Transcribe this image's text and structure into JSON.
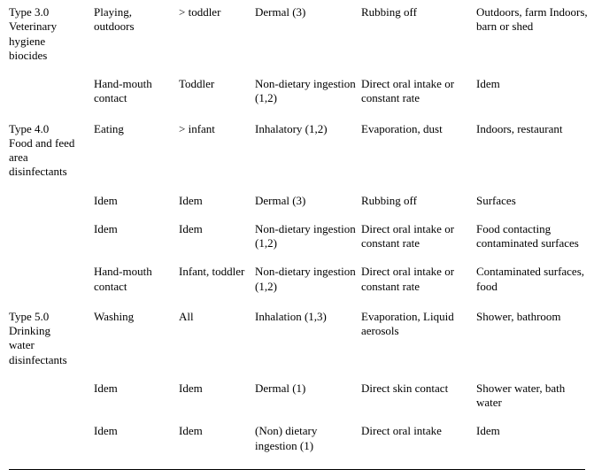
{
  "table": {
    "font_family": "Times New Roman",
    "font_size_pt": 10,
    "text_color": "#000000",
    "background_color": "#ffffff",
    "rule_color": "#000000",
    "columns": [
      "category",
      "activity",
      "age",
      "route",
      "mechanism",
      "location"
    ],
    "groups": [
      {
        "category_lines": [
          "Type 3.0",
          "Veterinary",
          "hygiene",
          "biocides"
        ],
        "rows": [
          {
            "activity": "Playing, outdoors",
            "age": "> toddler",
            "route": "Dermal (3)",
            "mechanism": "Rubbing off",
            "location": "Outdoors, farm Indoors, barn or shed"
          },
          {
            "activity": "Hand-mouth contact",
            "age": "Toddler",
            "route": "Non-dietary ingestion (1,2)",
            "mechanism": "Direct oral intake or constant rate",
            "location": "Idem"
          }
        ]
      },
      {
        "category_lines": [
          "Type 4.0",
          "Food and feed",
          "area",
          "disinfectants"
        ],
        "rows": [
          {
            "activity": "Eating",
            "age": "> infant",
            "route": "Inhalatory (1,2)",
            "mechanism": "Evaporation, dust",
            "location": "Indoors, restaurant"
          },
          {
            "activity": "Idem",
            "age": "Idem",
            "route": "Dermal (3)",
            "mechanism": "Rubbing off",
            "location": "Surfaces"
          },
          {
            "activity": "Idem",
            "age": "Idem",
            "route": "Non-dietary ingestion (1,2)",
            "mechanism": "Direct oral intake or constant rate",
            "location": "Food contacting contaminated surfaces"
          },
          {
            "activity": "Hand-mouth contact",
            "age": "Infant, toddler",
            "route": "Non-dietary ingestion (1,2)",
            "mechanism": "Direct oral intake or constant rate",
            "location": "Contaminated surfaces, food"
          }
        ]
      },
      {
        "category_lines": [
          "Type 5.0",
          "Drinking",
          "water",
          "disinfectants"
        ],
        "rows": [
          {
            "activity": "Washing",
            "age": "All",
            "route": "Inhalation (1,3)",
            "mechanism": "Evaporation, Liquid aerosols",
            "location": "Shower, bathroom"
          },
          {
            "activity": "Idem",
            "age": "Idem",
            "route": "Dermal (1)",
            "mechanism": "Direct skin contact",
            "location": "Shower water, bath water"
          },
          {
            "activity": "Idem",
            "age": "Idem",
            "route": "(Non) dietary ingestion (1)",
            "mechanism": "Direct oral intake",
            "location": "Idem"
          }
        ]
      }
    ]
  }
}
